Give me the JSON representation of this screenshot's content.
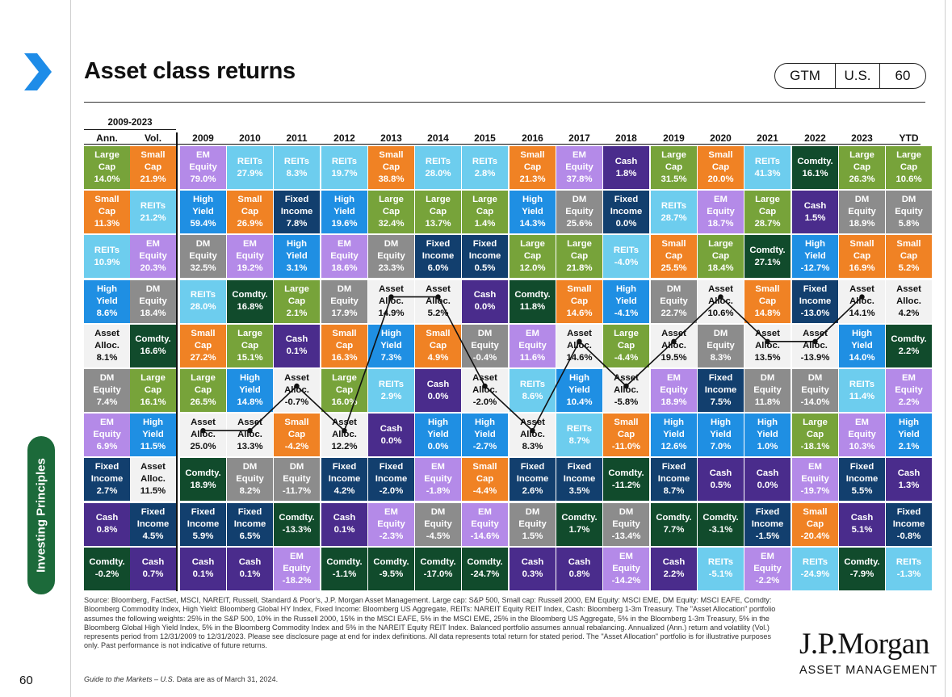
{
  "page": {
    "title": "Asset class returns",
    "badge": [
      "GTM",
      "U.S.",
      "60"
    ],
    "side_tab": "Investing Principles",
    "page_number": "60",
    "source": "Source: Bloomberg, FactSet, MSCI, NAREIT, Russell, Standard & Poor's, J.P. Morgan Asset Management. Large cap: S&P 500, Small cap: Russell 2000, EM Equity: MSCI EME, DM Equity: MSCI EAFE, Comdty: Bloomberg Commodity Index, High Yield: Bloomberg Global HY Index, Fixed Income: Bloomberg US Aggregate, REITs: NAREIT Equity REIT Index, Cash: Bloomberg 1-3m Treasury. The \"Asset Allocation\" portfolio assumes the following weights: 25% in the S&P 500, 10% in the Russell 2000, 15% in the MSCI EAFE, 5% in the MSCI EME, 25% in the Bloomberg US Aggregate, 5% in the Bloomberg 1-3m Treasury, 5% in the Bloomberg Global High Yield Index, 5% in the Bloomberg Commodity Index and 5% in the NAREIT Equity REIT Index. Balanced portfolio assumes annual rebalancing. Annualized (Ann.) return and volatility (Vol.) represents period from 12/31/2009 to 12/31/2023. Please see disclosure page at end for index definitions. All data represents total return for stated period. The \"Asset Allocation\" portfolio is for illustrative purposes only. Past performance is not indicative of future returns.",
    "source_guide": "Guide to the Markets – U.S.",
    "source_date": " Data are as of March 31, 2024.",
    "logo": "J.P.Morgan",
    "logo_sub": "ASSET MANAGEMENT"
  },
  "colors": {
    "Large Cap": "#77a33a",
    "Small Cap": "#f08224",
    "EM Equity": "#b48ae8",
    "DM Equity": "#8c8c8c",
    "REITs": "#6dcdee",
    "High Yield": "#1f8fe3",
    "Fixed Income": "#123f6e",
    "Cash": "#4a2c8c",
    "Comdty.": "#114b2c",
    "Asset Alloc.": "#f2f2f2",
    "brand_green": "#1c6a3a",
    "chevron": "#1e8ce8"
  },
  "chart_data": {
    "type": "table",
    "period_label": "2009-2023",
    "columns": [
      "Ann.",
      "Vol.",
      "2009",
      "2010",
      "2011",
      "2012",
      "2013",
      "2014",
      "2015",
      "2016",
      "2017",
      "2018",
      "2019",
      "2020",
      "2021",
      "2022",
      "2023",
      "YTD"
    ],
    "table": [
      [
        [
          "Large Cap",
          "14.0%"
        ],
        [
          "Small Cap",
          "21.9%"
        ],
        [
          "EM Equity",
          "79.0%"
        ],
        [
          "REITs",
          "27.9%"
        ],
        [
          "REITs",
          "8.3%"
        ],
        [
          "REITs",
          "19.7%"
        ],
        [
          "Small Cap",
          "38.8%"
        ],
        [
          "REITs",
          "28.0%"
        ],
        [
          "REITs",
          "2.8%"
        ],
        [
          "Small Cap",
          "21.3%"
        ],
        [
          "EM Equity",
          "37.8%"
        ],
        [
          "Cash",
          "1.8%"
        ],
        [
          "Large Cap",
          "31.5%"
        ],
        [
          "Small Cap",
          "20.0%"
        ],
        [
          "REITs",
          "41.3%"
        ],
        [
          "Comdty.",
          "16.1%"
        ],
        [
          "Large Cap",
          "26.3%"
        ],
        [
          "Large Cap",
          "10.6%"
        ]
      ],
      [
        [
          "Small Cap",
          "11.3%"
        ],
        [
          "REITs",
          "21.2%"
        ],
        [
          "High Yield",
          "59.4%"
        ],
        [
          "Small Cap",
          "26.9%"
        ],
        [
          "Fixed Income",
          "7.8%"
        ],
        [
          "High Yield",
          "19.6%"
        ],
        [
          "Large Cap",
          "32.4%"
        ],
        [
          "Large Cap",
          "13.7%"
        ],
        [
          "Large Cap",
          "1.4%"
        ],
        [
          "High Yield",
          "14.3%"
        ],
        [
          "DM Equity",
          "25.6%"
        ],
        [
          "Fixed Income",
          "0.0%"
        ],
        [
          "REITs",
          "28.7%"
        ],
        [
          "EM Equity",
          "18.7%"
        ],
        [
          "Large Cap",
          "28.7%"
        ],
        [
          "Cash",
          "1.5%"
        ],
        [
          "DM Equity",
          "18.9%"
        ],
        [
          "DM Equity",
          "5.8%"
        ]
      ],
      [
        [
          "REITs",
          "10.9%"
        ],
        [
          "EM Equity",
          "20.3%"
        ],
        [
          "DM Equity",
          "32.5%"
        ],
        [
          "EM Equity",
          "19.2%"
        ],
        [
          "High Yield",
          "3.1%"
        ],
        [
          "EM Equity",
          "18.6%"
        ],
        [
          "DM Equity",
          "23.3%"
        ],
        [
          "Fixed Income",
          "6.0%"
        ],
        [
          "Fixed Income",
          "0.5%"
        ],
        [
          "Large Cap",
          "12.0%"
        ],
        [
          "Large Cap",
          "21.8%"
        ],
        [
          "REITs",
          "-4.0%"
        ],
        [
          "Small Cap",
          "25.5%"
        ],
        [
          "Large Cap",
          "18.4%"
        ],
        [
          "Comdty.",
          "27.1%"
        ],
        [
          "High Yield",
          "-12.7%"
        ],
        [
          "Small Cap",
          "16.9%"
        ],
        [
          "Small Cap",
          "5.2%"
        ]
      ],
      [
        [
          "High Yield",
          "8.6%"
        ],
        [
          "DM Equity",
          "18.4%"
        ],
        [
          "REITs",
          "28.0%"
        ],
        [
          "Comdty.",
          "16.8%"
        ],
        [
          "Large Cap",
          "2.1%"
        ],
        [
          "DM Equity",
          "17.9%"
        ],
        [
          "Asset Alloc.",
          "14.9%"
        ],
        [
          "Asset Alloc.",
          "5.2%"
        ],
        [
          "Cash",
          "0.0%"
        ],
        [
          "Comdty.",
          "11.8%"
        ],
        [
          "Small Cap",
          "14.6%"
        ],
        [
          "High Yield",
          "-4.1%"
        ],
        [
          "DM Equity",
          "22.7%"
        ],
        [
          "Asset Alloc.",
          "10.6%"
        ],
        [
          "Small Cap",
          "14.8%"
        ],
        [
          "Fixed Income",
          "-13.0%"
        ],
        [
          "Asset Alloc.",
          "14.1%"
        ],
        [
          "Asset Alloc.",
          "4.2%"
        ]
      ],
      [
        [
          "Asset Alloc.",
          "8.1%"
        ],
        [
          "Comdty.",
          "16.6%"
        ],
        [
          "Small Cap",
          "27.2%"
        ],
        [
          "Large Cap",
          "15.1%"
        ],
        [
          "Cash",
          "0.1%"
        ],
        [
          "Small Cap",
          "16.3%"
        ],
        [
          "High Yield",
          "7.3%"
        ],
        [
          "Small Cap",
          "4.9%"
        ],
        [
          "DM Equity",
          "-0.4%"
        ],
        [
          "EM Equity",
          "11.6%"
        ],
        [
          "Asset Alloc.",
          "14.6%"
        ],
        [
          "Large Cap",
          "-4.4%"
        ],
        [
          "Asset Alloc.",
          "19.5%"
        ],
        [
          "DM Equity",
          "8.3%"
        ],
        [
          "Asset Alloc.",
          "13.5%"
        ],
        [
          "Asset Alloc.",
          "-13.9%"
        ],
        [
          "High Yield",
          "14.0%"
        ],
        [
          "Comdty.",
          "2.2%"
        ]
      ],
      [
        [
          "DM Equity",
          "7.4%"
        ],
        [
          "Large Cap",
          "16.1%"
        ],
        [
          "Large Cap",
          "26.5%"
        ],
        [
          "High Yield",
          "14.8%"
        ],
        [
          "Asset Alloc.",
          "-0.7%"
        ],
        [
          "Large Cap",
          "16.0%"
        ],
        [
          "REITs",
          "2.9%"
        ],
        [
          "Cash",
          "0.0%"
        ],
        [
          "Asset Alloc.",
          "-2.0%"
        ],
        [
          "REITs",
          "8.6%"
        ],
        [
          "High Yield",
          "10.4%"
        ],
        [
          "Asset Alloc.",
          "-5.8%"
        ],
        [
          "EM Equity",
          "18.9%"
        ],
        [
          "Fixed Income",
          "7.5%"
        ],
        [
          "DM Equity",
          "11.8%"
        ],
        [
          "DM Equity",
          "-14.0%"
        ],
        [
          "REITs",
          "11.4%"
        ],
        [
          "EM Equity",
          "2.2%"
        ]
      ],
      [
        [
          "EM Equity",
          "6.9%"
        ],
        [
          "High Yield",
          "11.5%"
        ],
        [
          "Asset Alloc.",
          "25.0%"
        ],
        [
          "Asset Alloc.",
          "13.3%"
        ],
        [
          "Small Cap",
          "-4.2%"
        ],
        [
          "Asset Alloc.",
          "12.2%"
        ],
        [
          "Cash",
          "0.0%"
        ],
        [
          "High Yield",
          "0.0%"
        ],
        [
          "High Yield",
          "-2.7%"
        ],
        [
          "Asset Alloc.",
          "8.3%"
        ],
        [
          "REITs",
          "8.7%"
        ],
        [
          "Small Cap",
          "-11.0%"
        ],
        [
          "High Yield",
          "12.6%"
        ],
        [
          "High Yield",
          "7.0%"
        ],
        [
          "High Yield",
          "1.0%"
        ],
        [
          "Large Cap",
          "-18.1%"
        ],
        [
          "EM Equity",
          "10.3%"
        ],
        [
          "High Yield",
          "2.1%"
        ]
      ],
      [
        [
          "Fixed Income",
          "2.7%"
        ],
        [
          "Asset Alloc.",
          "11.5%"
        ],
        [
          "Comdty.",
          "18.9%"
        ],
        [
          "DM Equity",
          "8.2%"
        ],
        [
          "DM Equity",
          "-11.7%"
        ],
        [
          "Fixed Income",
          "4.2%"
        ],
        [
          "Fixed Income",
          "-2.0%"
        ],
        [
          "EM Equity",
          "-1.8%"
        ],
        [
          "Small Cap",
          "-4.4%"
        ],
        [
          "Fixed Income",
          "2.6%"
        ],
        [
          "Fixed Income",
          "3.5%"
        ],
        [
          "Comdty.",
          "-11.2%"
        ],
        [
          "Fixed Income",
          "8.7%"
        ],
        [
          "Cash",
          "0.5%"
        ],
        [
          "Cash",
          "0.0%"
        ],
        [
          "EM Equity",
          "-19.7%"
        ],
        [
          "Fixed Income",
          "5.5%"
        ],
        [
          "Cash",
          "1.3%"
        ]
      ],
      [
        [
          "Cash",
          "0.8%"
        ],
        [
          "Fixed Income",
          "4.5%"
        ],
        [
          "Fixed Income",
          "5.9%"
        ],
        [
          "Fixed Income",
          "6.5%"
        ],
        [
          "Comdty.",
          "-13.3%"
        ],
        [
          "Cash",
          "0.1%"
        ],
        [
          "EM Equity",
          "-2.3%"
        ],
        [
          "DM Equity",
          "-4.5%"
        ],
        [
          "EM Equity",
          "-14.6%"
        ],
        [
          "DM Equity",
          "1.5%"
        ],
        [
          "Comdty.",
          "1.7%"
        ],
        [
          "DM Equity",
          "-13.4%"
        ],
        [
          "Comdty.",
          "7.7%"
        ],
        [
          "Comdty.",
          "-3.1%"
        ],
        [
          "Fixed Income",
          "-1.5%"
        ],
        [
          "Small Cap",
          "-20.4%"
        ],
        [
          "Cash",
          "5.1%"
        ],
        [
          "Fixed Income",
          "-0.8%"
        ]
      ],
      [
        [
          "Comdty.",
          "-0.2%"
        ],
        [
          "Cash",
          "0.7%"
        ],
        [
          "Cash",
          "0.1%"
        ],
        [
          "Cash",
          "0.1%"
        ],
        [
          "EM Equity",
          "-18.2%"
        ],
        [
          "Comdty.",
          "-1.1%"
        ],
        [
          "Comdty.",
          "-9.5%"
        ],
        [
          "Comdty.",
          "-17.0%"
        ],
        [
          "Comdty.",
          "-24.7%"
        ],
        [
          "Cash",
          "0.3%"
        ],
        [
          "Cash",
          "0.8%"
        ],
        [
          "EM Equity",
          "-14.2%"
        ],
        [
          "Cash",
          "2.2%"
        ],
        [
          "REITs",
          "-5.1%"
        ],
        [
          "EM Equity",
          "-2.2%"
        ],
        [
          "REITs",
          "-24.9%"
        ],
        [
          "Comdty.",
          "-7.9%"
        ],
        [
          "REITs",
          "-1.3%"
        ]
      ]
    ]
  }
}
